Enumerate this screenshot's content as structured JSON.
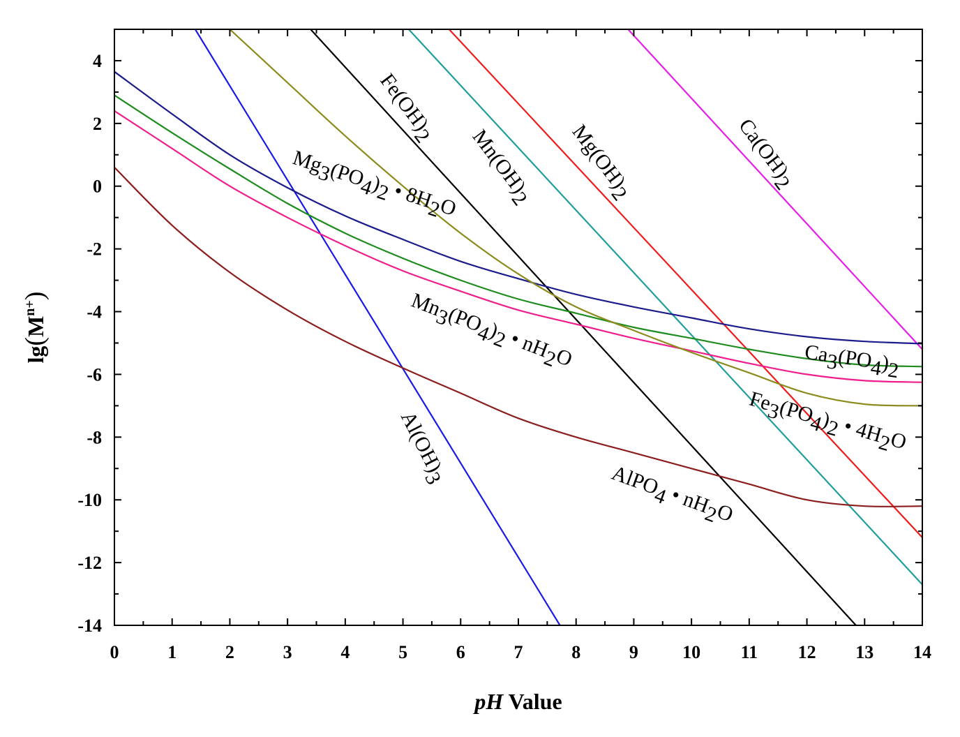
{
  "chart_data": {
    "type": "line",
    "title": "",
    "xlabel": {
      "italic": "pH",
      "rest": " Value"
    },
    "ylabel": {
      "base": "lg",
      "paren_open": "(",
      "M": "M",
      "sup": "n+",
      "paren_close": ")"
    },
    "xlim": [
      0,
      14
    ],
    "ylim": [
      -14,
      5
    ],
    "xticks": [
      0,
      1,
      2,
      3,
      4,
      5,
      6,
      7,
      8,
      9,
      10,
      11,
      12,
      13,
      14
    ],
    "yticks": [
      -14,
      -12,
      -10,
      -8,
      -6,
      -4,
      -2,
      0,
      2,
      4
    ],
    "grid": false,
    "series": [
      {
        "name": "Al(OH)3",
        "label_parts": [
          {
            "t": "Al(OH)"
          },
          {
            "t": "3",
            "sub": true
          }
        ],
        "color": "#1a1ae6",
        "x": [
          1.4,
          7.72
        ],
        "y": [
          5,
          -14
        ]
      },
      {
        "name": "Fe(OH)2",
        "label_parts": [
          {
            "t": "Fe(OH)"
          },
          {
            "t": "2",
            "sub": true
          }
        ],
        "color": "#000000",
        "x": [
          3.4,
          12.85
        ],
        "y": [
          5,
          -14
        ]
      },
      {
        "name": "Mn(OH)2",
        "label_parts": [
          {
            "t": "Mn(OH)"
          },
          {
            "t": "2",
            "sub": true
          }
        ],
        "color": "#1f9e9a",
        "x": [
          5.1,
          14
        ],
        "y": [
          5,
          -12.7
        ]
      },
      {
        "name": "Mg(OH)2",
        "label_parts": [
          {
            "t": "Mg(OH)"
          },
          {
            "t": "2",
            "sub": true
          }
        ],
        "color": "#ee1c1c",
        "x": [
          5.8,
          14
        ],
        "y": [
          5,
          -11.2
        ]
      },
      {
        "name": "Ca(OH)2",
        "label_parts": [
          {
            "t": "Ca(OH)"
          },
          {
            "t": "2",
            "sub": true
          }
        ],
        "color": "#e61ee6",
        "x": [
          8.9,
          14
        ],
        "y": [
          5,
          -5.2
        ]
      },
      {
        "name": "Mg3(PO4)2 • 8H2O",
        "label_parts": [
          {
            "t": "Mg"
          },
          {
            "t": "3",
            "sub": true
          },
          {
            "t": "(PO"
          },
          {
            "t": "4",
            "sub": true
          },
          {
            "t": ")"
          },
          {
            "t": "2",
            "sub": true
          },
          {
            "t": " • 8H"
          },
          {
            "t": "2",
            "sub": true
          },
          {
            "t": "O"
          }
        ],
        "color": "#1c1c8c",
        "x": [
          0,
          1,
          2,
          3,
          4,
          5,
          6,
          7,
          8,
          9,
          10,
          11,
          12,
          13,
          14
        ],
        "y": [
          3.65,
          2.3,
          1.0,
          -0.05,
          -0.95,
          -1.7,
          -2.4,
          -2.95,
          -3.45,
          -3.85,
          -4.2,
          -4.55,
          -4.8,
          -4.95,
          -5.02
        ]
      },
      {
        "name": "Ca3(PO4)2",
        "label_parts": [
          {
            "t": "Ca"
          },
          {
            "t": "3",
            "sub": true
          },
          {
            "t": "(PO"
          },
          {
            "t": "4",
            "sub": true
          },
          {
            "t": ")"
          },
          {
            "t": "2",
            "sub": true
          }
        ],
        "color": "#1e8c1e",
        "x": [
          0,
          1,
          2,
          3,
          4,
          5,
          6,
          7,
          8,
          9,
          10,
          11,
          12,
          13,
          14
        ],
        "y": [
          2.9,
          1.7,
          0.55,
          -0.55,
          -1.5,
          -2.3,
          -3.0,
          -3.6,
          -4.05,
          -4.5,
          -4.85,
          -5.2,
          -5.5,
          -5.7,
          -5.75
        ]
      },
      {
        "name": "Mn3(PO4)2 • nH2O",
        "label_parts": [
          {
            "t": "Mn"
          },
          {
            "t": "3",
            "sub": true
          },
          {
            "t": "(PO"
          },
          {
            "t": "4",
            "sub": true
          },
          {
            "t": ")"
          },
          {
            "t": "2",
            "sub": true
          },
          {
            "t": " • nH"
          },
          {
            "t": "2",
            "sub": true
          },
          {
            "t": "O"
          }
        ],
        "color": "#f01e8c",
        "x": [
          0,
          1,
          2,
          3,
          4,
          5,
          6,
          7,
          8,
          9,
          10,
          11,
          12,
          13,
          14
        ],
        "y": [
          2.4,
          1.2,
          0.0,
          -1.0,
          -1.9,
          -2.7,
          -3.35,
          -3.95,
          -4.4,
          -4.85,
          -5.25,
          -5.65,
          -6.0,
          -6.2,
          -6.25
        ]
      },
      {
        "name": "Fe3(PO4)2 • 4H2O",
        "label_parts": [
          {
            "t": "Fe"
          },
          {
            "t": "3",
            "sub": true
          },
          {
            "t": "(PO"
          },
          {
            "t": "4",
            "sub": true
          },
          {
            "t": ")"
          },
          {
            "t": "2",
            "sub": true
          },
          {
            "t": " • 4H"
          },
          {
            "t": "2",
            "sub": true
          },
          {
            "t": "O"
          }
        ],
        "color": "#8c8c1e",
        "x": [
          2.0,
          3,
          4,
          5,
          6,
          7,
          8,
          9,
          10,
          11,
          12,
          13,
          14
        ],
        "y": [
          5.0,
          3.3,
          1.6,
          0.0,
          -1.5,
          -2.8,
          -3.85,
          -4.6,
          -5.3,
          -5.95,
          -6.6,
          -6.95,
          -7.0
        ]
      },
      {
        "name": "AlPO4 • nH2O",
        "label_parts": [
          {
            "t": "AlPO"
          },
          {
            "t": "4",
            "sub": true
          },
          {
            "t": " • nH"
          },
          {
            "t": "2",
            "sub": true
          },
          {
            "t": "O"
          }
        ],
        "color": "#8c1e1e",
        "x": [
          0,
          1,
          2,
          3,
          4,
          5,
          6,
          7,
          8,
          9,
          10,
          11,
          12,
          13,
          14
        ],
        "y": [
          0.6,
          -1.25,
          -2.75,
          -3.95,
          -4.95,
          -5.8,
          -6.6,
          -7.4,
          -8.0,
          -8.5,
          -9.0,
          -9.5,
          -10.0,
          -10.2,
          -10.2
        ]
      }
    ]
  }
}
